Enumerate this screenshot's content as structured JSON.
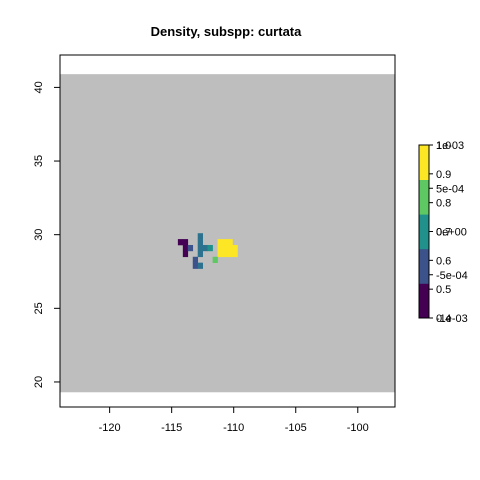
{
  "chart_data": {
    "type": "heatmap",
    "title": "Density, subspp: curtata",
    "xlabel": "",
    "ylabel": "",
    "xlim": [
      -124,
      -97
    ],
    "ylim": [
      18.3,
      42.2
    ],
    "xticks": [
      "-120",
      "-115",
      "-110",
      "-105",
      "-100"
    ],
    "yticks": [
      "20",
      "25",
      "30",
      "35",
      "40"
    ],
    "background_region": {
      "x": [
        -124,
        -97
      ],
      "y": [
        19.3,
        40.9
      ],
      "color": "#bebebe"
    },
    "cell_size": 0.4,
    "cells": [
      {
        "x": -114.3,
        "y": 29.5,
        "value": 0.4,
        "color": "#440154"
      },
      {
        "x": -113.9,
        "y": 29.5,
        "value": 0.4,
        "color": "#440154"
      },
      {
        "x": -113.9,
        "y": 29.1,
        "value": 0.4,
        "color": "#440154"
      },
      {
        "x": -113.9,
        "y": 28.7,
        "value": 0.4,
        "color": "#440154"
      },
      {
        "x": -113.5,
        "y": 29.1,
        "value": 0.5,
        "color": "#3b528b"
      },
      {
        "x": -113.1,
        "y": 28.3,
        "value": 0.5,
        "color": "#3b528b"
      },
      {
        "x": -113.1,
        "y": 27.9,
        "value": 0.5,
        "color": "#3b528b"
      },
      {
        "x": -112.7,
        "y": 29.9,
        "value": 0.62,
        "color": "#2c728e"
      },
      {
        "x": -112.7,
        "y": 29.5,
        "value": 0.62,
        "color": "#2c728e"
      },
      {
        "x": -112.7,
        "y": 29.1,
        "value": 0.62,
        "color": "#2c728e"
      },
      {
        "x": -112.3,
        "y": 29.1,
        "value": 0.62,
        "color": "#2c728e"
      },
      {
        "x": -112.7,
        "y": 28.7,
        "value": 0.62,
        "color": "#2c728e"
      },
      {
        "x": -112.7,
        "y": 27.9,
        "value": 0.62,
        "color": "#2c728e"
      },
      {
        "x": -111.9,
        "y": 29.1,
        "value": 0.68,
        "color": "#21918c"
      },
      {
        "x": -111.5,
        "y": 28.3,
        "value": 0.78,
        "color": "#5ec962"
      },
      {
        "x": -111.1,
        "y": 29.5,
        "value": 1.0,
        "color": "#fde725"
      },
      {
        "x": -110.7,
        "y": 29.5,
        "value": 1.0,
        "color": "#fde725"
      },
      {
        "x": -110.3,
        "y": 29.5,
        "value": 1.0,
        "color": "#fde725"
      },
      {
        "x": -111.1,
        "y": 29.1,
        "value": 1.0,
        "color": "#fde725"
      },
      {
        "x": -110.7,
        "y": 29.1,
        "value": 1.0,
        "color": "#fde725"
      },
      {
        "x": -110.3,
        "y": 29.1,
        "value": 1.0,
        "color": "#fde725"
      },
      {
        "x": -109.9,
        "y": 29.1,
        "value": 1.0,
        "color": "#fde725"
      },
      {
        "x": -111.1,
        "y": 28.7,
        "value": 1.0,
        "color": "#fde725"
      },
      {
        "x": -110.7,
        "y": 28.7,
        "value": 1.0,
        "color": "#fde725"
      },
      {
        "x": -110.3,
        "y": 28.7,
        "value": 1.0,
        "color": "#fde725"
      },
      {
        "x": -109.9,
        "y": 28.7,
        "value": 1.0,
        "color": "#fde725"
      }
    ],
    "legend": {
      "placement": "right",
      "colors": [
        "#440154",
        "#3b528b",
        "#21918c",
        "#5ec962",
        "#fde725"
      ],
      "scale_a": {
        "range": [
          0.4,
          1.0
        ],
        "ticks": [
          {
            "value": 0.4,
            "label": "0.4"
          },
          {
            "value": 0.5,
            "label": "0.5"
          },
          {
            "value": 0.6,
            "label": "0.6"
          },
          {
            "value": 0.7,
            "label": "0.7"
          },
          {
            "value": 0.8,
            "label": "0.8"
          },
          {
            "value": 0.9,
            "label": "0.9"
          },
          {
            "value": 1.0,
            "label": "1.0"
          }
        ]
      },
      "scale_b": {
        "range": [
          -0.001,
          0.001
        ],
        "ticks": [
          {
            "value": -0.001,
            "label": "-1e-03"
          },
          {
            "value": -0.0005,
            "label": "-5e-04"
          },
          {
            "value": 0,
            "label": "0e+00"
          },
          {
            "value": 0.0005,
            "label": "5e-04"
          },
          {
            "value": 0.001,
            "label": "1e-03"
          }
        ]
      }
    }
  }
}
